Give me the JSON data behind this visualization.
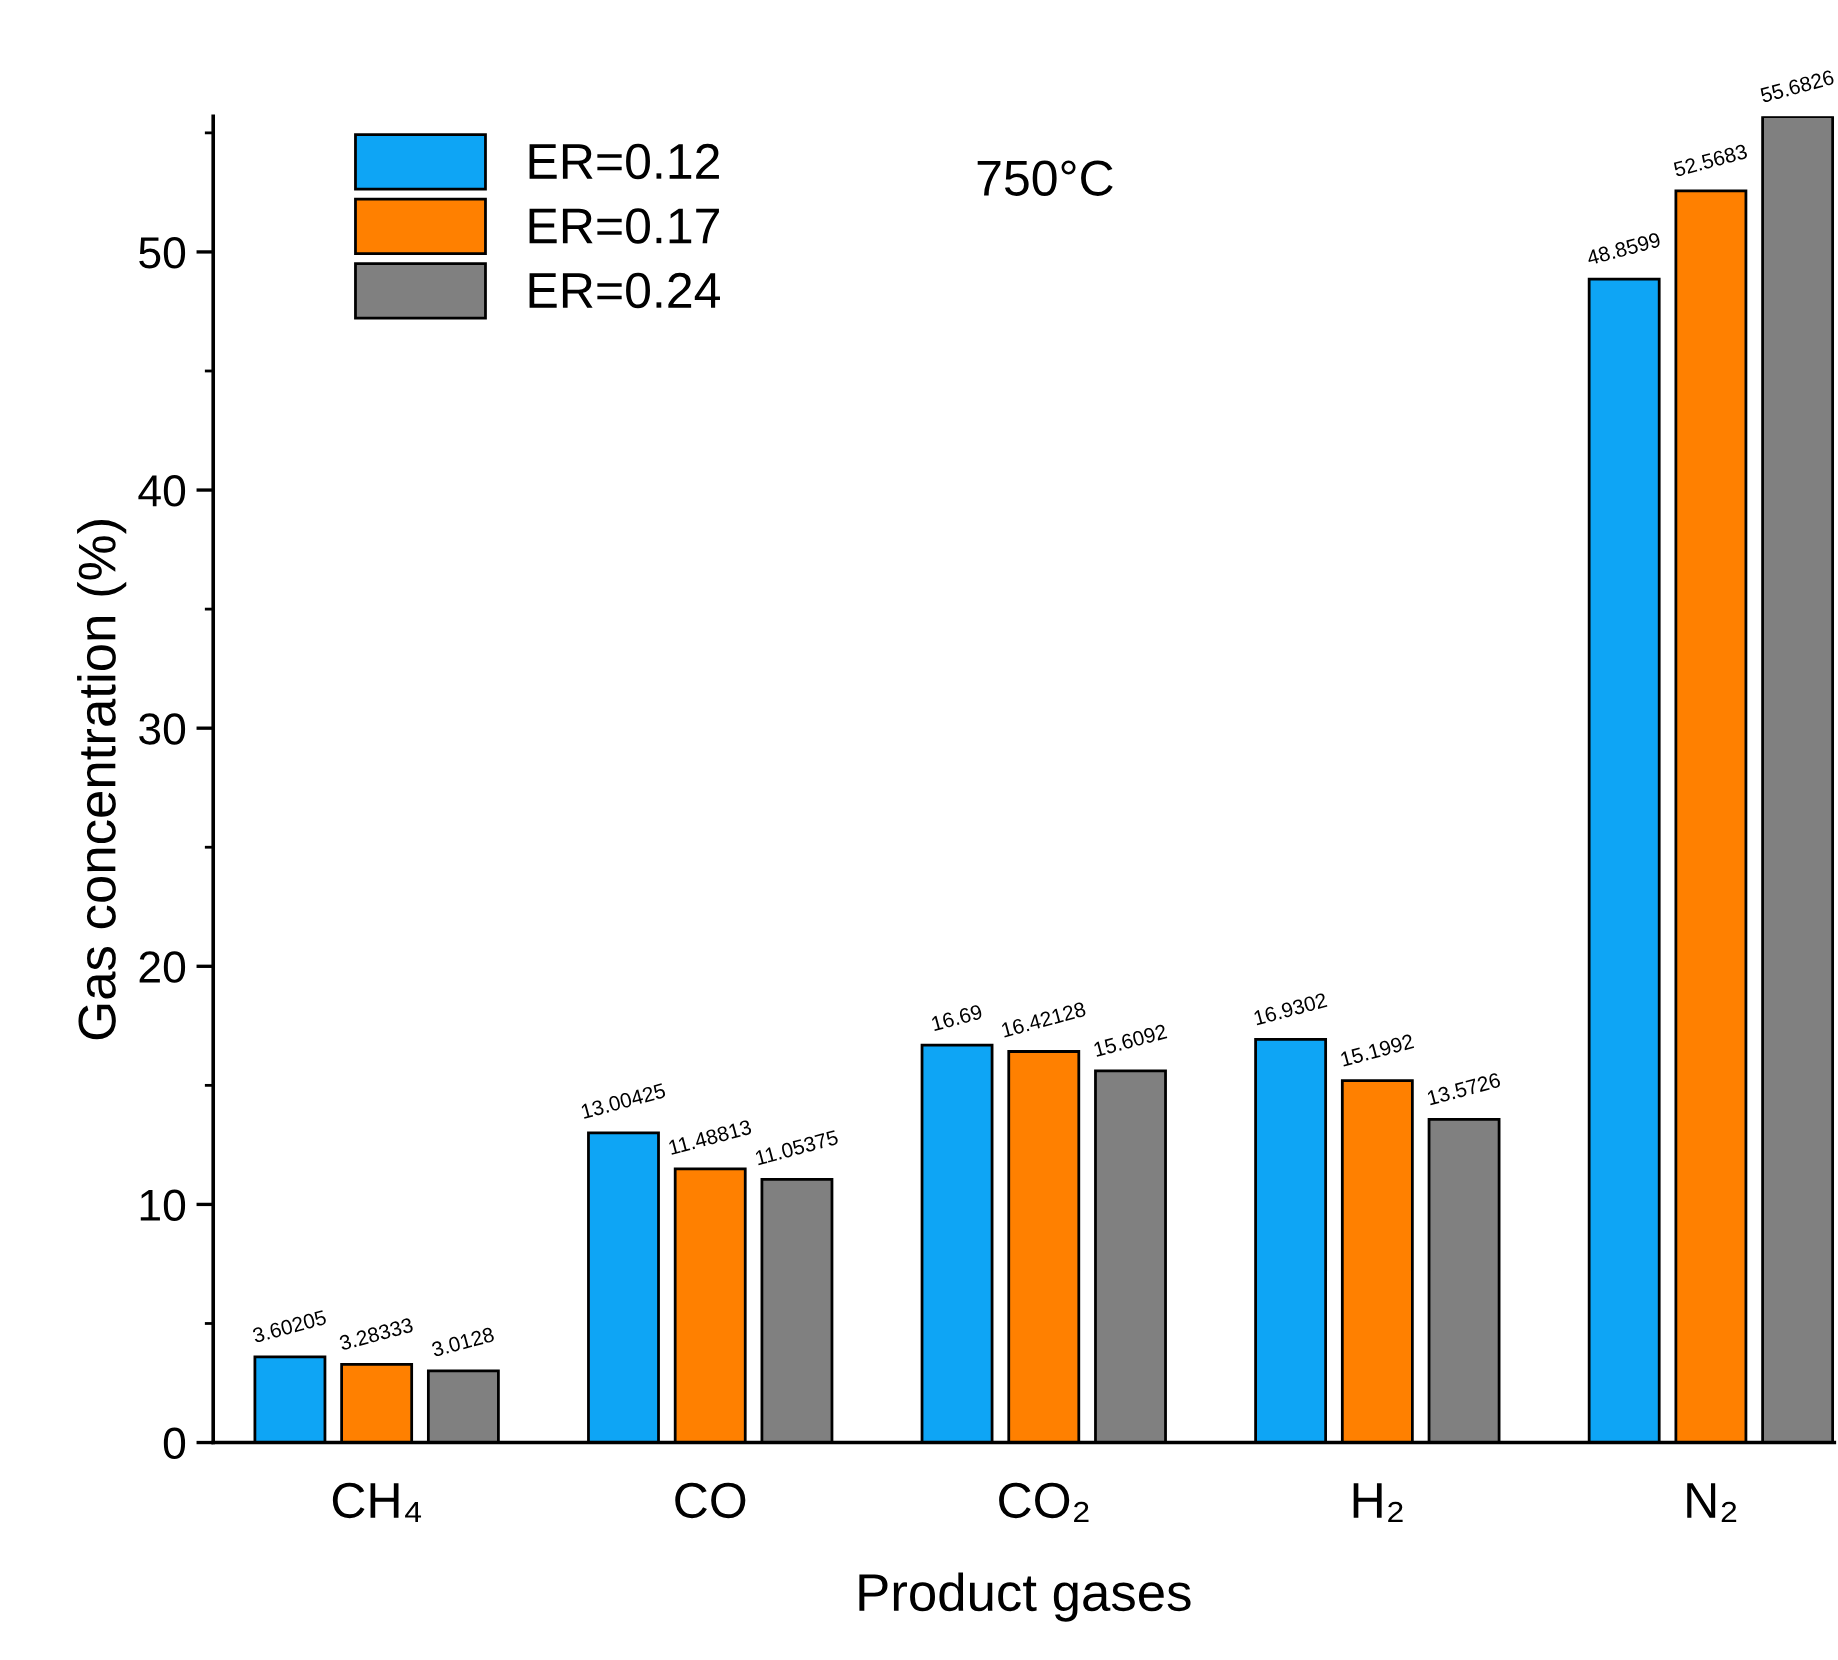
{
  "chart_data": {
    "type": "bar",
    "xlabel": "Product gases",
    "ylabel": "Gas concentration (%)",
    "categories": [
      "CH₄",
      "CO",
      "CO₂",
      "H₂",
      "N₂"
    ],
    "series": [
      {
        "name": "ER=0.12",
        "color": "#0ea5f5",
        "values": [
          3.60205,
          13.00425,
          16.69,
          16.9302,
          48.8599
        ]
      },
      {
        "name": "ER=0.17",
        "color": "#ff8000",
        "values": [
          3.28333,
          11.48813,
          16.42128,
          15.1992,
          52.5683
        ]
      },
      {
        "name": "ER=0.24",
        "color": "#808080",
        "values": [
          3.0128,
          11.05375,
          15.6092,
          13.5726,
          55.6826
        ]
      }
    ],
    "ylim": [
      0,
      55.7
    ],
    "yticks": [
      0,
      10,
      20,
      30,
      40,
      50
    ],
    "data_labels": true,
    "legend": "top left",
    "grid": false,
    "annotations": [
      "750°C"
    ]
  }
}
